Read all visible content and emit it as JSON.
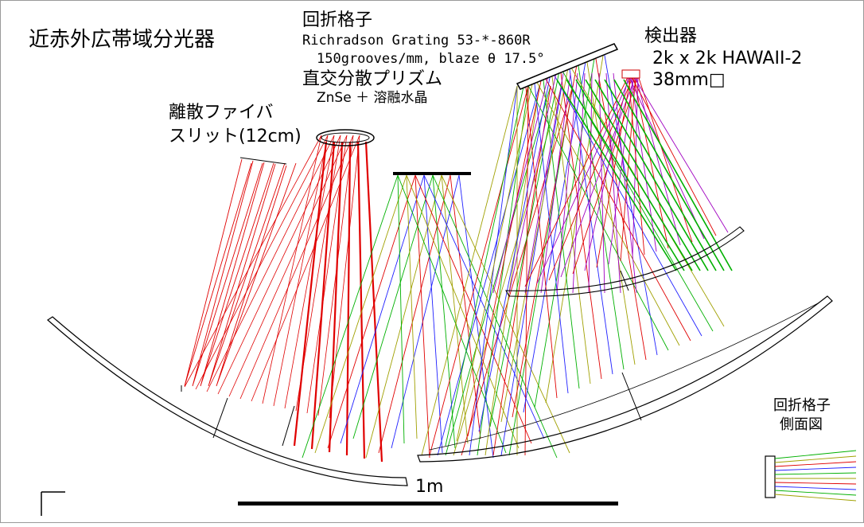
{
  "title": "近赤外広帯域分光器",
  "grating": {
    "heading": "回折格子",
    "model": "Richradson Grating 53-*-860R",
    "spec": "150grooves/mm, blaze θ 17.5°"
  },
  "prism": {
    "heading": "直交分散プリズム",
    "material": "ZnSe ＋ 溶融水晶"
  },
  "slit": {
    "line1": "離散ファイバ",
    "line2": "スリット(12cm)"
  },
  "detector": {
    "heading": "検出器",
    "format": "2k x 2k HAWAII-2",
    "size": "38mm□"
  },
  "grating_side_view": {
    "line1": "回折格子",
    "line2": "側面図"
  },
  "scale_bar": {
    "label": "1m"
  },
  "colors": {
    "ray_red": "#e00000",
    "ray_green": "#00b000",
    "ray_olive": "#a0a000",
    "ray_blue": "#2020ff",
    "ray_purple": "#a000c0",
    "outline": "#000000"
  }
}
